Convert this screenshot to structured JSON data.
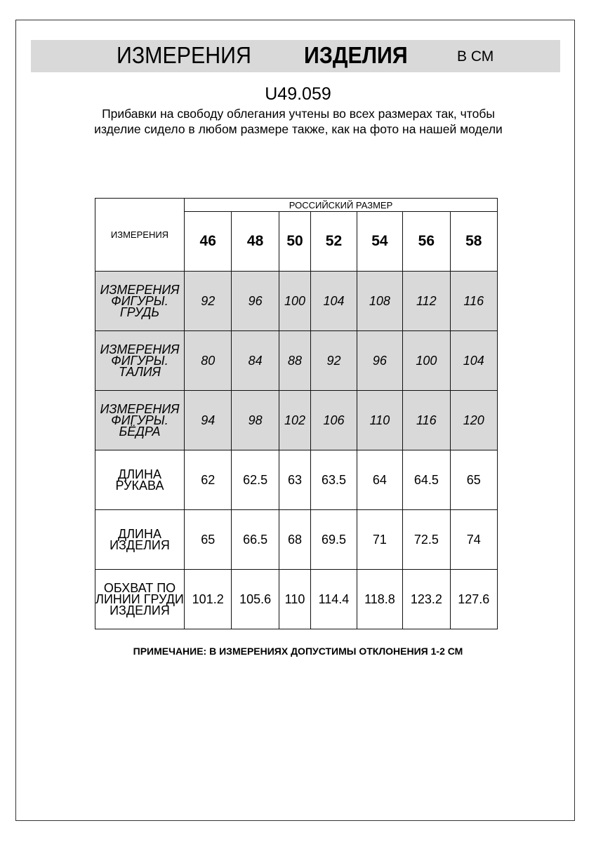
{
  "header": {
    "title_regular": "ИЗМЕРЕНИЯ",
    "title_bold": "ИЗДЕЛИЯ",
    "unit": "В СМ"
  },
  "article": "U49.059",
  "description": "Прибавки на свободу облегания учтены во всех размерах так, чтобы изделие сидело в любом размере также, как на фото на нашей модели",
  "table": {
    "corner_label": "ИЗМЕРЕНИЯ",
    "group_label": "РОССИЙСКИЙ РАЗМЕР",
    "sizes": [
      "46",
      "48",
      "50",
      "52",
      "54",
      "56",
      "58"
    ],
    "rows": [
      {
        "label": "ИЗМЕРЕНИЯ ФИГУРЫ. ГРУДЬ",
        "shaded": true,
        "values": [
          "92",
          "96",
          "100",
          "104",
          "108",
          "112",
          "116"
        ]
      },
      {
        "label": "ИЗМЕРЕНИЯ ФИГУРЫ. ТАЛИЯ",
        "shaded": true,
        "values": [
          "80",
          "84",
          "88",
          "92",
          "96",
          "100",
          "104"
        ]
      },
      {
        "label": "ИЗМЕРЕНИЯ ФИГУРЫ. БЁДРА",
        "shaded": true,
        "values": [
          "94",
          "98",
          "102",
          "106",
          "110",
          "116",
          "120"
        ]
      },
      {
        "label": "ДЛИНА РУКАВА",
        "shaded": false,
        "values": [
          "62",
          "62.5",
          "63",
          "63.5",
          "64",
          "64.5",
          "65"
        ]
      },
      {
        "label": "ДЛИНА ИЗДЕЛИЯ",
        "shaded": false,
        "values": [
          "65",
          "66.5",
          "68",
          "69.5",
          "71",
          "72.5",
          "74"
        ]
      },
      {
        "label": "ОБХВАТ ПО ЛИНИИ ГРУДИ ИЗДЕЛИЯ",
        "shaded": false,
        "values": [
          "101.2",
          "105.6",
          "110",
          "114.4",
          "118.8",
          "123.2",
          "127.6"
        ]
      }
    ]
  },
  "note": "ПРИМЕЧАНИЕ: В ИЗМЕРЕНИЯХ ДОПУСТИМЫ ОТКЛОНЕНИЯ 1-2 СМ",
  "colors": {
    "band": "#d9d9d9",
    "shade": "#d9d9d9"
  }
}
